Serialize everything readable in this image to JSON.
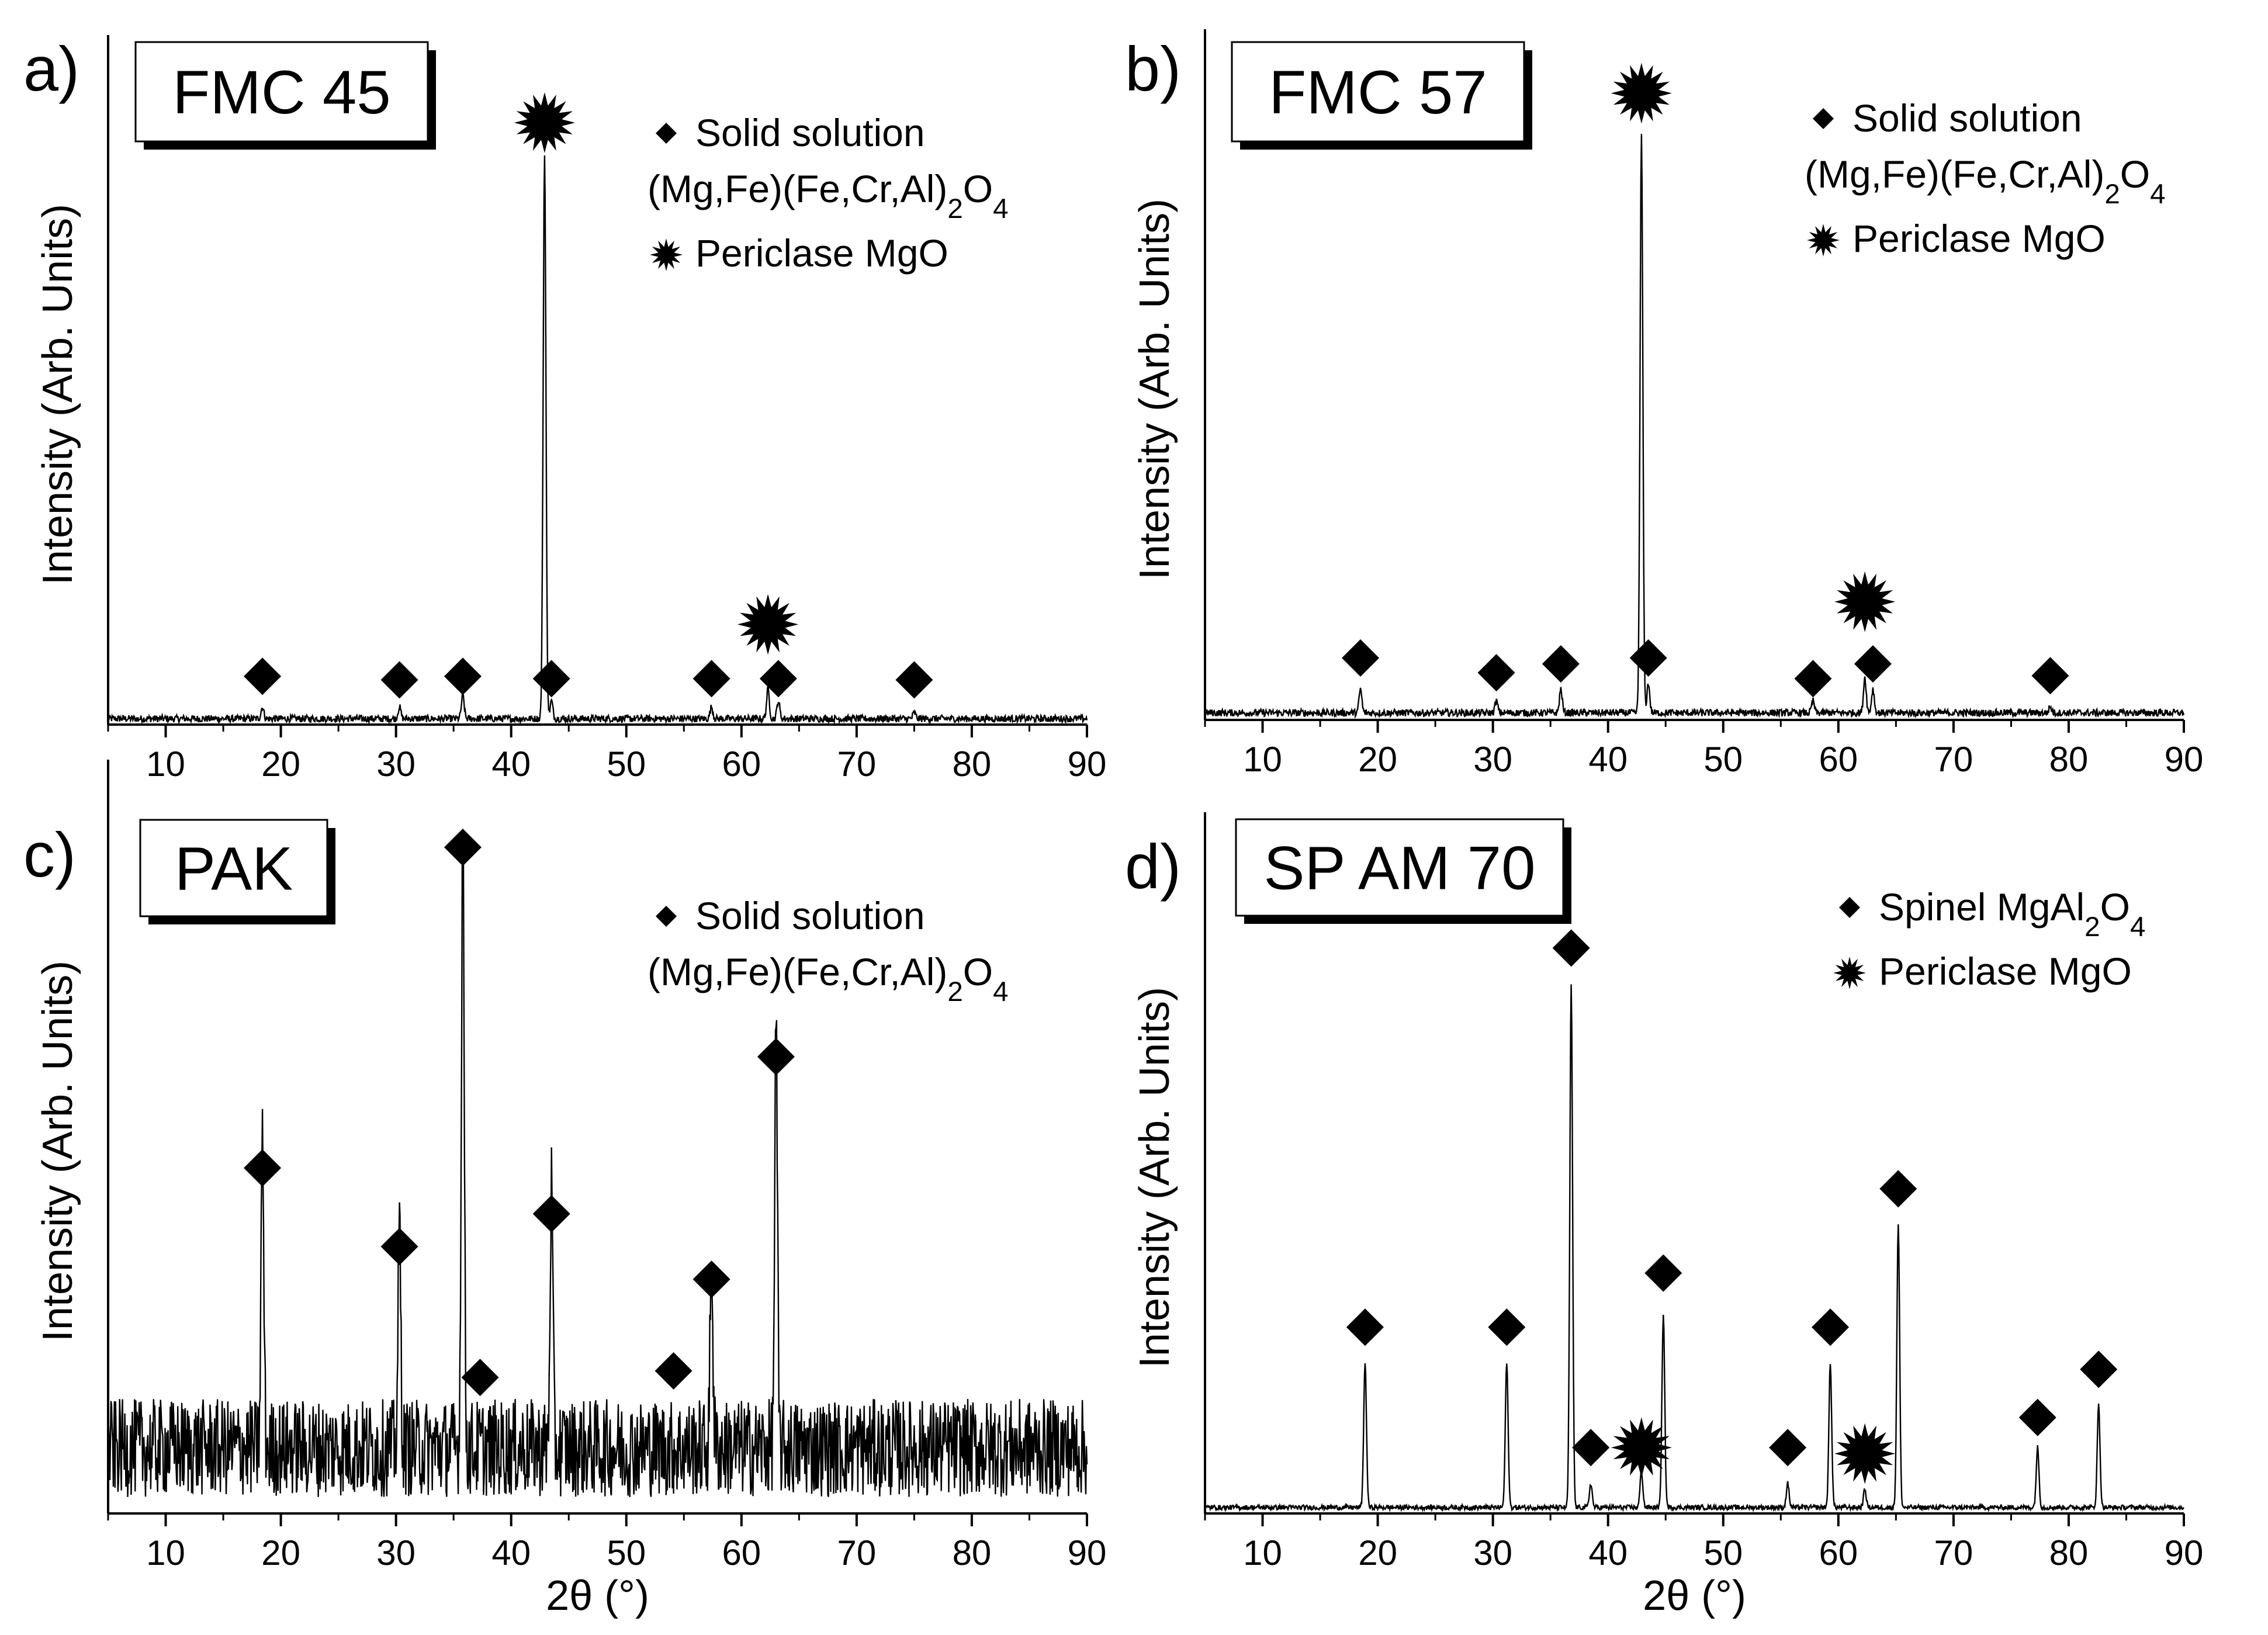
{
  "figure": {
    "x_axis_title": "2θ (°)",
    "y_axis_title": "Intensity (Arb. Units)"
  },
  "chart_data": [
    {
      "type": "line",
      "panel": "a)",
      "title": "FMC 45",
      "xlabel": "",
      "ylabel": "Intensity (Arb. Units)",
      "xlim": [
        5,
        90
      ],
      "ylim": [
        0,
        1
      ],
      "xticks": [
        10,
        20,
        30,
        40,
        50,
        60,
        70,
        80,
        90
      ],
      "noise": 0.006,
      "baseline": 0.01,
      "legend": [
        {
          "marker": "diamond",
          "lines": [
            "Solid solution",
            "(Mg,Fe)(Fe,Cr,Al)₂O₄"
          ]
        },
        {
          "marker": "star",
          "lines": [
            "Periclase MgO"
          ]
        }
      ],
      "peaks": [
        {
          "x": 18.4,
          "h": 0.02,
          "phase": "diamond",
          "marker_y": 0.062
        },
        {
          "x": 30.3,
          "h": 0.02,
          "phase": "diamond",
          "marker_y": 0.056
        },
        {
          "x": 35.8,
          "h": 0.04,
          "phase": "diamond",
          "marker_y": 0.062
        },
        {
          "x": 42.9,
          "h": 0.96,
          "phase": "star",
          "marker_y": 1.0
        },
        {
          "x": 43.5,
          "h": 0.03,
          "phase": "diamond",
          "marker_y": 0.058
        },
        {
          "x": 57.4,
          "h": 0.02,
          "phase": "diamond",
          "marker_y": 0.058
        },
        {
          "x": 62.3,
          "h": 0.05,
          "phase": "star",
          "marker_y": 0.15
        },
        {
          "x": 63.2,
          "h": 0.03,
          "phase": "diamond",
          "marker_y": 0.058
        },
        {
          "x": 75.0,
          "h": 0.01,
          "phase": "diamond",
          "marker_y": 0.056
        }
      ]
    },
    {
      "type": "line",
      "panel": "b)",
      "title": "FMC 57",
      "xlabel": "",
      "ylabel": "Intensity (Arb. Units)",
      "xlim": [
        5,
        90
      ],
      "ylim": [
        0,
        1
      ],
      "xticks": [
        10,
        20,
        30,
        40,
        50,
        60,
        70,
        80,
        90
      ],
      "noise": 0.006,
      "baseline": 0.012,
      "legend": [
        {
          "marker": "diamond",
          "lines": [
            "Solid solution",
            "(Mg,Fe)(Fe,Cr,Al)₂O₄"
          ]
        },
        {
          "marker": "star",
          "lines": [
            "Periclase MgO"
          ]
        }
      ],
      "peaks": [
        {
          "x": 18.5,
          "h": 0.04,
          "phase": "diamond",
          "marker_y": 0.085
        },
        {
          "x": 30.3,
          "h": 0.02,
          "phase": "diamond",
          "marker_y": 0.06
        },
        {
          "x": 35.9,
          "h": 0.04,
          "phase": "diamond",
          "marker_y": 0.075
        },
        {
          "x": 42.9,
          "h": 0.98,
          "phase": "star",
          "marker_y": 1.04
        },
        {
          "x": 43.5,
          "h": 0.05,
          "phase": "diamond",
          "marker_y": 0.085
        },
        {
          "x": 57.8,
          "h": 0.02,
          "phase": "diamond",
          "marker_y": 0.05
        },
        {
          "x": 62.3,
          "h": 0.06,
          "phase": "star",
          "marker_y": 0.18
        },
        {
          "x": 63.0,
          "h": 0.04,
          "phase": "diamond",
          "marker_y": 0.075
        },
        {
          "x": 78.4,
          "h": 0.01,
          "phase": "diamond",
          "marker_y": 0.055
        }
      ]
    },
    {
      "type": "line",
      "panel": "c)",
      "title": "PAK",
      "xlabel": "2θ (°)",
      "ylabel": "Intensity (Arb. Units)",
      "xlim": [
        5,
        90
      ],
      "ylim": [
        0,
        1
      ],
      "xticks": [
        10,
        20,
        30,
        40,
        50,
        60,
        70,
        80,
        90
      ],
      "noise": 0.075,
      "baseline": 0.1,
      "legend": [
        {
          "marker": "diamond",
          "lines": [
            "Solid solution",
            "(Mg,Fe)(Fe,Cr,Al)₂O₄"
          ]
        }
      ],
      "peaks": [
        {
          "x": 18.4,
          "h": 0.47,
          "phase": "diamond",
          "marker_y": 0.51
        },
        {
          "x": 30.3,
          "h": 0.34,
          "phase": "diamond",
          "marker_y": 0.39
        },
        {
          "x": 35.8,
          "h": 0.97,
          "phase": "diamond",
          "marker_y": 1.0
        },
        {
          "x": 37.3,
          "h": 0.0,
          "phase": "diamond",
          "marker_y": 0.19
        },
        {
          "x": 43.5,
          "h": 0.4,
          "phase": "diamond",
          "marker_y": 0.44
        },
        {
          "x": 54.1,
          "h": 0.0,
          "phase": "diamond",
          "marker_y": 0.2
        },
        {
          "x": 57.4,
          "h": 0.29,
          "phase": "diamond",
          "marker_y": 0.34
        },
        {
          "x": 63.0,
          "h": 0.64,
          "phase": "diamond",
          "marker_y": 0.68
        }
      ]
    },
    {
      "type": "line",
      "panel": "d)",
      "title": "SP AM 70",
      "xlabel": "2θ (°)",
      "ylabel": "Intensity (Arb. Units)",
      "xlim": [
        5,
        90
      ],
      "ylim": [
        0,
        1
      ],
      "xticks": [
        10,
        20,
        30,
        40,
        50,
        60,
        70,
        80,
        90
      ],
      "noise": 0.004,
      "baseline": 0.01,
      "legend": [
        {
          "marker": "diamond",
          "lines": [
            "Spinel MgAl₂O₄"
          ]
        },
        {
          "marker": "star",
          "lines": [
            "Periclase MgO"
          ]
        }
      ],
      "peaks": [
        {
          "x": 18.9,
          "h": 0.24,
          "phase": "diamond",
          "marker_y": 0.29
        },
        {
          "x": 31.2,
          "h": 0.24,
          "phase": "diamond",
          "marker_y": 0.29
        },
        {
          "x": 36.8,
          "h": 0.87,
          "phase": "diamond",
          "marker_y": 0.92
        },
        {
          "x": 38.5,
          "h": 0.04,
          "phase": "diamond",
          "marker_y": 0.09
        },
        {
          "x": 42.9,
          "h": 0.06,
          "phase": "star",
          "marker_y": 0.09
        },
        {
          "x": 44.8,
          "h": 0.32,
          "phase": "diamond",
          "marker_y": 0.38
        },
        {
          "x": 55.6,
          "h": 0.04,
          "phase": "diamond",
          "marker_y": 0.09
        },
        {
          "x": 59.3,
          "h": 0.24,
          "phase": "diamond",
          "marker_y": 0.29
        },
        {
          "x": 62.3,
          "h": 0.03,
          "phase": "star",
          "marker_y": 0.08
        },
        {
          "x": 65.2,
          "h": 0.47,
          "phase": "diamond",
          "marker_y": 0.52
        },
        {
          "x": 77.3,
          "h": 0.1,
          "phase": "diamond",
          "marker_y": 0.14
        },
        {
          "x": 82.6,
          "h": 0.17,
          "phase": "diamond",
          "marker_y": 0.22
        }
      ]
    }
  ]
}
